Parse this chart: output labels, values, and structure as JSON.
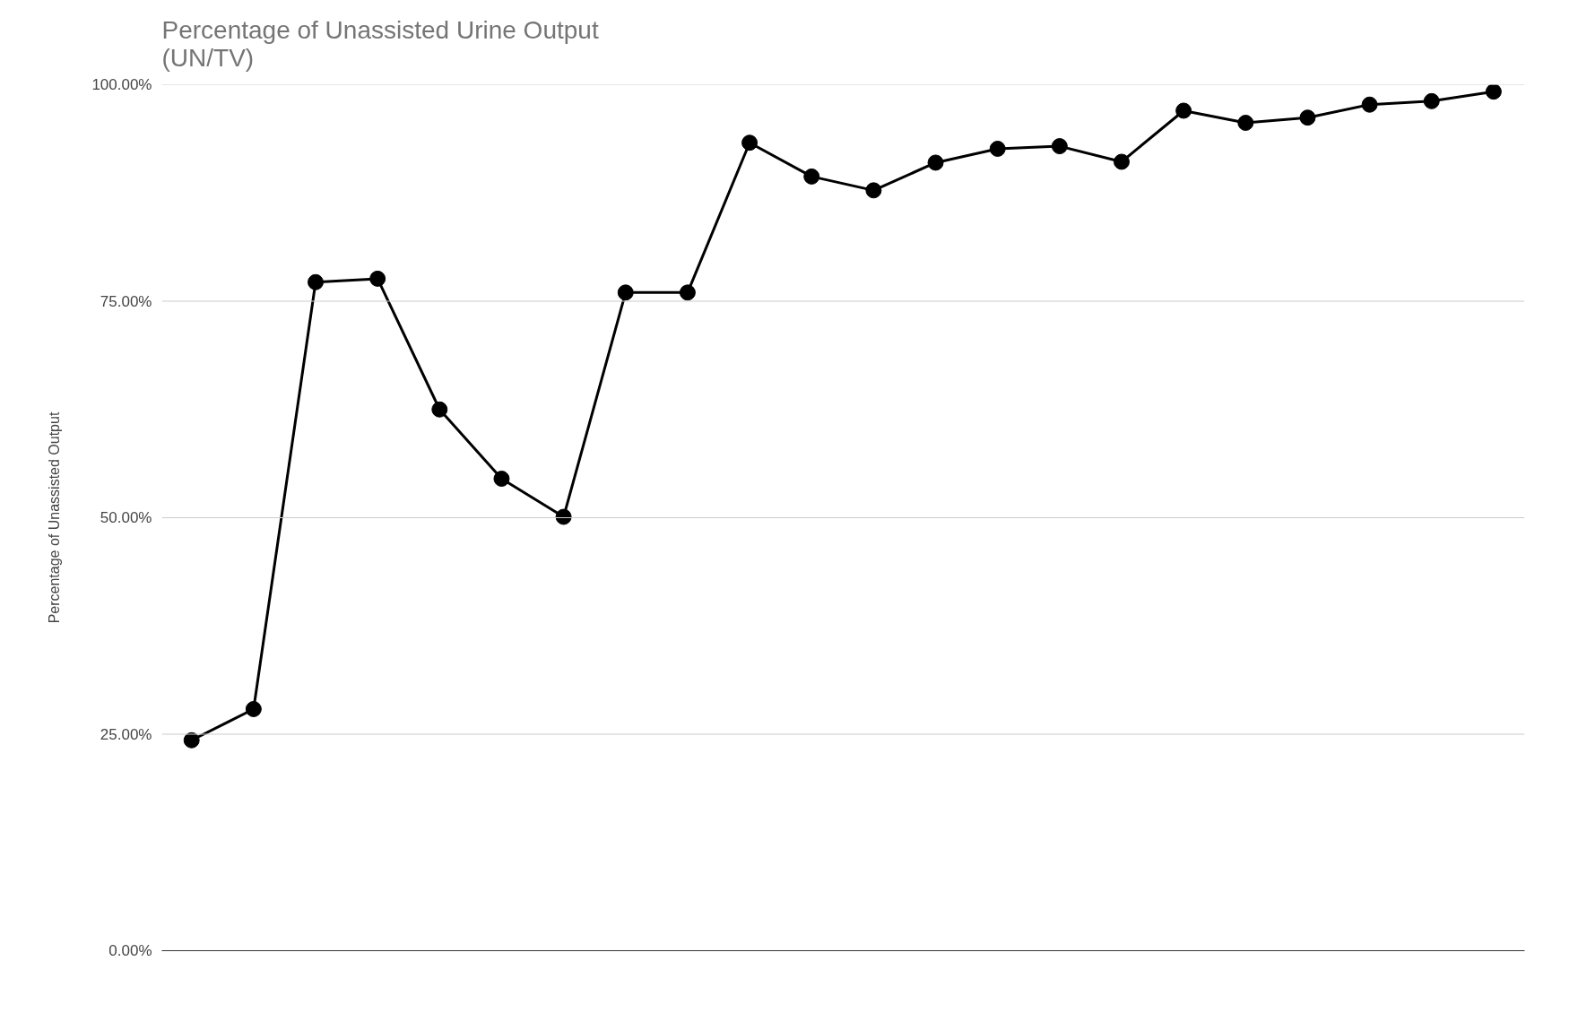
{
  "chart_data": {
    "type": "line",
    "title": "Percentage of Unassisted Urine Output\n(UN/TV)",
    "ylabel": "Percentage of Unassisted Output",
    "categories": [
      null,
      null,
      null,
      null,
      null,
      null,
      null,
      null,
      null,
      null,
      null,
      null,
      null,
      null,
      null,
      null,
      null,
      null,
      null,
      null,
      null,
      null
    ],
    "series": [
      {
        "color": "#000000",
        "values": [
          24.3,
          27.9,
          77.2,
          77.6,
          62.5,
          54.5,
          50.1,
          76.0,
          76.0,
          93.3,
          89.4,
          87.8,
          91.0,
          92.6,
          92.9,
          91.1,
          97.0,
          95.6,
          96.2,
          97.7,
          98.1,
          99.2
        ]
      }
    ],
    "ylim": [
      0,
      100
    ],
    "yticks": [
      {
        "value": 0,
        "label": "0.00%"
      },
      {
        "value": 25,
        "label": "25.00%"
      },
      {
        "value": 50,
        "label": "50.00%"
      },
      {
        "value": 75,
        "label": "75.00%"
      },
      {
        "value": 100,
        "label": "100.00%"
      }
    ],
    "grid": "y",
    "marker": "circle",
    "line_style": "solid",
    "tick_labels": "y"
  }
}
